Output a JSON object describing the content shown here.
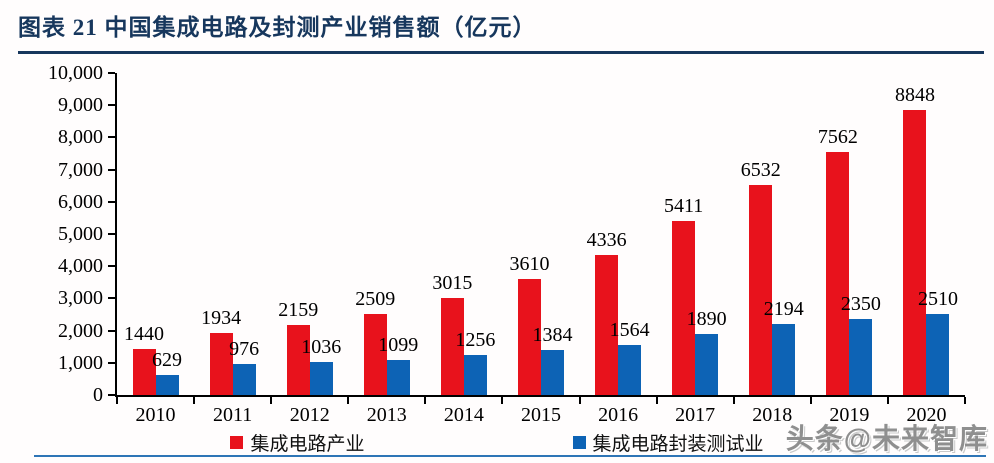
{
  "header": {
    "title": "图表 21  中国集成电路及封测产业销售额（亿元）"
  },
  "chart_data": {
    "type": "bar",
    "title": "中国集成电路及封测产业销售额（亿元）",
    "categories": [
      "2010",
      "2011",
      "2012",
      "2013",
      "2014",
      "2015",
      "2016",
      "2017",
      "2018",
      "2019",
      "2020"
    ],
    "series": [
      {
        "name": "集成电路产业",
        "color": "#e8121c",
        "values": [
          1440,
          1934,
          2159,
          2509,
          3015,
          3610,
          4336,
          5411,
          6532,
          7562,
          8848
        ]
      },
      {
        "name": "集成电路封装测试业",
        "color": "#0d63b5",
        "values": [
          629,
          976,
          1036,
          1099,
          1256,
          1384,
          1564,
          1890,
          2194,
          2350,
          2510
        ]
      }
    ],
    "xlabel": "",
    "ylabel": "",
    "ylim": [
      0,
      10000
    ],
    "ytick_step": 1000,
    "ytick_labels": [
      "0",
      "1,000",
      "2,000",
      "3,000",
      "4,000",
      "5,000",
      "6,000",
      "7,000",
      "8,000",
      "9,000",
      "10,000"
    ],
    "grid": false,
    "legend_position": "bottom",
    "bar_value_labels": true
  },
  "watermark": "头条@未来智库",
  "colors": {
    "title_navy": "#17375d",
    "series_red": "#e8121c",
    "series_blue": "#0d63b5",
    "bottom_rule_blue": "#2e75b6",
    "axis_black": "#000000",
    "watermark_gray": "#8f8f8f"
  }
}
